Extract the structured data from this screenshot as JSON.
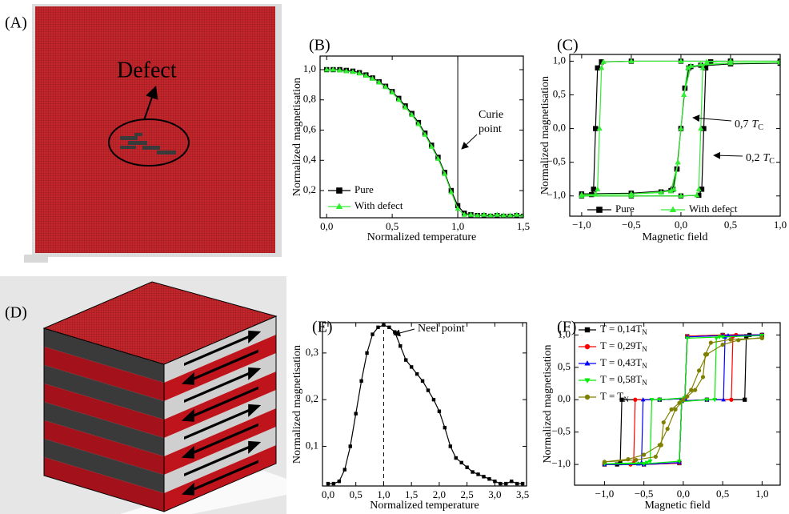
{
  "panels": [
    "(A)",
    "(B)",
    "(C)",
    "(D)",
    "(E)",
    "(F)"
  ],
  "defect_label": "Defect",
  "chart_data": [
    {
      "type": "line",
      "xlabel": "Normalized temperature",
      "ylabel": "Normalized magnetisation",
      "xlim": [
        -0.05,
        1.5
      ],
      "ylim": [
        0.02,
        1.09
      ],
      "xticks": [
        {
          "value": 0,
          "label": "0,0"
        },
        {
          "value": 0.5,
          "label": "0,5"
        },
        {
          "value": 1.0,
          "label": "1,0"
        },
        {
          "value": 1.5,
          "label": "1,5"
        }
      ],
      "yticks": [
        {
          "value": 0.2,
          "label": "0,2"
        },
        {
          "value": 0.4,
          "label": "0,4"
        },
        {
          "value": 0.6,
          "label": "0,6"
        },
        {
          "value": 0.8,
          "label": "0,8"
        },
        {
          "value": 1.0,
          "label": "1,0"
        }
      ],
      "grid": false,
      "legend": "lower left",
      "reference_line": {
        "x": 1.0,
        "dashed": false
      },
      "annotations": [
        {
          "lines": [
            "Curie",
            "point"
          ]
        }
      ],
      "x": [
        0,
        0.05,
        0.1,
        0.15,
        0.2,
        0.25,
        0.3,
        0.35,
        0.4,
        0.45,
        0.5,
        0.55,
        0.6,
        0.65,
        0.7,
        0.75,
        0.8,
        0.85,
        0.9,
        0.95,
        1.0,
        1.05,
        1.1,
        1.15,
        1.2,
        1.25,
        1.3,
        1.35,
        1.4,
        1.45,
        1.5
      ],
      "series": [
        {
          "name": "Pure",
          "color": "#000000",
          "marker": "square",
          "values": [
            1.0,
            1.0,
            1.0,
            0.995,
            0.99,
            0.98,
            0.965,
            0.945,
            0.92,
            0.89,
            0.855,
            0.81,
            0.76,
            0.71,
            0.65,
            0.58,
            0.5,
            0.42,
            0.32,
            0.2,
            0.1,
            0.05,
            0.04,
            0.035,
            0.035,
            0.03,
            0.035,
            0.03,
            0.03,
            0.035,
            0.03
          ]
        },
        {
          "name": "With defect",
          "color": "#33ee33",
          "marker": "triangle",
          "values": [
            1.0,
            1.0,
            0.995,
            0.99,
            0.985,
            0.975,
            0.96,
            0.94,
            0.915,
            0.885,
            0.85,
            0.8,
            0.75,
            0.7,
            0.64,
            0.57,
            0.49,
            0.41,
            0.31,
            0.19,
            0.08,
            0.04,
            0.04,
            0.035,
            0.04,
            0.035,
            0.04,
            0.035,
            0.035,
            0.04,
            0.035
          ]
        }
      ]
    },
    {
      "type": "line",
      "xlabel": "Magnetic field",
      "ylabel": "Normalized magnetisation",
      "xlim": [
        -1.12,
        1.0
      ],
      "ylim": [
        -1.3,
        1.1
      ],
      "xticks": [
        {
          "value": -1.0,
          "label": "−1,0"
        },
        {
          "value": -0.5,
          "label": "−0,5"
        },
        {
          "value": 0,
          "label": "0,0"
        },
        {
          "value": 0.5,
          "label": "0,5"
        },
        {
          "value": 1.0,
          "label": "1,0"
        }
      ],
      "yticks": [
        {
          "value": -1.0,
          "label": "−1,0"
        },
        {
          "value": -0.5,
          "label": "−0,5"
        },
        {
          "value": 0,
          "label": "0,0"
        },
        {
          "value": 0.5,
          "label": "0,5"
        },
        {
          "value": 1.0,
          "label": "1,0"
        }
      ],
      "grid": false,
      "legend": "lower center",
      "annotations": [
        {
          "text": "0,7",
          "symbol": "T",
          "subscript": "C"
        },
        {
          "text": "0,2",
          "symbol": "T",
          "subscript": "C"
        }
      ],
      "series": [
        {
          "name": "Pure",
          "color": "#000000",
          "marker": "square",
          "x": [
            1.0,
            0.5,
            0.0,
            -0.5,
            -0.8,
            -0.84,
            -0.86,
            -0.88,
            -0.9,
            -1.0,
            -0.5,
            0.0,
            0.18,
            0.21,
            0.23,
            0.25,
            0.3,
            0.5,
            1.0,
            null,
            1.0,
            0.5,
            0.1,
            0.04,
            0.0,
            -0.04,
            -0.08,
            -0.2,
            -0.5,
            -1.0,
            -0.5,
            -0.1,
            -0.04,
            0.0,
            0.04,
            0.08,
            0.2,
            0.5,
            1.0
          ],
          "values": [
            1.0,
            1.0,
            1.0,
            1.0,
            0.99,
            0.9,
            0.0,
            -0.9,
            -0.98,
            -1.0,
            -1.0,
            -1.0,
            -0.99,
            -0.9,
            0.0,
            0.9,
            0.99,
            1.0,
            1.0,
            null,
            0.97,
            0.96,
            0.92,
            0.6,
            0.0,
            -0.6,
            -0.9,
            -0.94,
            -0.96,
            -0.97,
            -0.96,
            -0.92,
            -0.6,
            0.0,
            0.6,
            0.9,
            0.94,
            0.96,
            0.97
          ]
        },
        {
          "name": "With defect",
          "color": "#33ee33",
          "marker": "triangle",
          "x": [
            1.0,
            0.5,
            0.0,
            -0.5,
            -0.78,
            -0.8,
            -0.82,
            -0.84,
            -0.86,
            -1.0,
            -0.5,
            0.0,
            0.16,
            0.18,
            0.2,
            0.22,
            0.26,
            0.5,
            1.0,
            null,
            1.0,
            0.5,
            0.1,
            0.03,
            0.0,
            -0.03,
            -0.07,
            -0.2,
            -0.5,
            -1.0,
            -0.5,
            -0.1,
            -0.03,
            0.0,
            0.03,
            0.07,
            0.2,
            0.5,
            1.0
          ],
          "values": [
            1.0,
            1.0,
            1.0,
            1.0,
            0.99,
            0.9,
            0.0,
            -0.9,
            -0.98,
            -1.0,
            -1.0,
            -1.0,
            -0.99,
            -0.9,
            0.0,
            0.9,
            0.99,
            1.0,
            1.0,
            null,
            0.98,
            0.97,
            0.93,
            0.5,
            0.0,
            -0.5,
            -0.9,
            -0.95,
            -0.97,
            -0.98,
            -0.97,
            -0.93,
            -0.5,
            0.0,
            0.5,
            0.9,
            0.95,
            0.97,
            0.98
          ]
        }
      ]
    },
    {
      "type": "line",
      "xlabel": "Normalized temperature",
      "ylabel": "Normalized magnetisation",
      "xlim": [
        -0.1,
        3.57
      ],
      "ylim": [
        0.015,
        0.365
      ],
      "xticks": [
        {
          "value": 0,
          "label": "0,0"
        },
        {
          "value": 0.5,
          "label": "0,5"
        },
        {
          "value": 1.0,
          "label": "1,0"
        },
        {
          "value": 1.5,
          "label": "1,5"
        },
        {
          "value": 2.0,
          "label": "2,0"
        },
        {
          "value": 2.5,
          "label": "2,5"
        },
        {
          "value": 3.0,
          "label": "3,0"
        },
        {
          "value": 3.5,
          "label": "3,5"
        }
      ],
      "yticks": [
        {
          "value": 0.1,
          "label": "0,1"
        },
        {
          "value": 0.2,
          "label": "0,2"
        },
        {
          "value": 0.3,
          "label": "0,3"
        }
      ],
      "grid": false,
      "reference_line": {
        "x": 1.0,
        "dashed": true
      },
      "annotations": [
        {
          "text": "Neel point"
        }
      ],
      "x": [
        0,
        0.1,
        0.2,
        0.3,
        0.4,
        0.5,
        0.6,
        0.7,
        0.8,
        0.9,
        1.0,
        1.1,
        1.2,
        1.3,
        1.4,
        1.5,
        1.6,
        1.7,
        1.8,
        1.9,
        2.0,
        2.1,
        2.2,
        2.3,
        2.4,
        2.5,
        2.6,
        2.7,
        2.8,
        2.9,
        3.0,
        3.1,
        3.2,
        3.3,
        3.4,
        3.5
      ],
      "series": [
        {
          "color": "#000000",
          "marker": "square",
          "values": [
            0.02,
            0.02,
            0.025,
            0.05,
            0.1,
            0.17,
            0.24,
            0.3,
            0.34,
            0.355,
            0.36,
            0.355,
            0.345,
            0.315,
            0.285,
            0.27,
            0.255,
            0.24,
            0.22,
            0.2,
            0.175,
            0.14,
            0.1,
            0.075,
            0.065,
            0.055,
            0.045,
            0.04,
            0.035,
            0.03,
            0.025,
            0.02,
            0.02,
            0.025,
            0.02,
            0.02
          ]
        }
      ]
    },
    {
      "type": "line",
      "xlabel": "Magnetic field",
      "ylabel": "Normalized magnetisation",
      "xlim": [
        -1.38,
        1.23
      ],
      "ylim": [
        -1.32,
        1.19
      ],
      "xticks": [
        {
          "value": -1.0,
          "label": "−1,0"
        },
        {
          "value": -0.5,
          "label": "−0,5"
        },
        {
          "value": 0,
          "label": "0,0"
        },
        {
          "value": 0.5,
          "label": "0,5"
        },
        {
          "value": 1.0,
          "label": "1,0"
        }
      ],
      "yticks": [
        {
          "value": -1.0,
          "label": "−1,0"
        },
        {
          "value": -0.5,
          "label": "−0,5"
        },
        {
          "value": 0,
          "label": "0,0"
        },
        {
          "value": 0.5,
          "label": "0,5"
        },
        {
          "value": 1.0,
          "label": "1,0"
        }
      ],
      "grid": false,
      "legend": "upper left",
      "series": [
        {
          "name": "T = 0,14T",
          "name_subscript": "N",
          "color": "#000000",
          "marker": "square",
          "x": [
            1.0,
            0.5,
            0.05,
            0.02,
            -0.3,
            -0.78,
            -0.8,
            -0.84,
            -1.0,
            -0.5,
            -0.05,
            -0.02,
            0.3,
            0.78,
            0.8,
            0.84,
            1.0
          ],
          "values": [
            1.0,
            1.0,
            0.98,
            0.02,
            0.0,
            0.0,
            -0.98,
            -1.0,
            -1.0,
            -1.0,
            -0.98,
            -0.02,
            0.0,
            0.0,
            0.98,
            1.0,
            1.0
          ]
        },
        {
          "name": "T = 0,29T",
          "name_subscript": "N",
          "color": "#ff0000",
          "marker": "circle",
          "x": [
            1.0,
            0.5,
            0.05,
            0.02,
            -0.3,
            -0.61,
            -0.63,
            -0.67,
            -1.0,
            -0.5,
            -0.05,
            -0.02,
            0.3,
            0.61,
            0.63,
            0.67,
            1.0
          ],
          "values": [
            1.0,
            1.0,
            0.98,
            0.02,
            0.0,
            0.0,
            -0.98,
            -1.0,
            -1.0,
            -1.0,
            -0.98,
            -0.02,
            0.0,
            0.0,
            0.98,
            1.0,
            1.0
          ]
        },
        {
          "name": "T = 0,43T",
          "name_subscript": "N",
          "color": "#0000ff",
          "marker": "triangle",
          "x": [
            1.0,
            0.5,
            0.05,
            0.02,
            -0.3,
            -0.51,
            -0.53,
            -0.57,
            -1.0,
            -0.5,
            -0.05,
            -0.02,
            0.3,
            0.51,
            0.53,
            0.57,
            1.0
          ],
          "values": [
            1.0,
            0.99,
            0.97,
            0.02,
            0.0,
            0.0,
            -0.97,
            -0.99,
            -1.0,
            -1.0,
            -0.97,
            -0.02,
            0.0,
            0.0,
            0.97,
            0.99,
            1.0
          ]
        },
        {
          "name": "T = 0,58T",
          "name_subscript": "N",
          "color": "#00ee00",
          "marker": "triangle-down",
          "x": [
            1.0,
            0.5,
            0.05,
            0.02,
            -0.3,
            -0.4,
            -0.42,
            -0.46,
            -1.0,
            -0.5,
            -0.05,
            -0.02,
            0.3,
            0.4,
            0.42,
            0.46,
            1.0
          ],
          "values": [
            0.99,
            0.97,
            0.95,
            0.03,
            0.0,
            0.0,
            -0.95,
            -0.97,
            -0.99,
            -0.99,
            -0.95,
            -0.03,
            0.0,
            0.0,
            0.95,
            0.97,
            0.99
          ]
        },
        {
          "name": "T = T",
          "name_subscript": "N",
          "color": "#808000",
          "marker": "circle",
          "x": [
            1.0,
            0.6,
            0.35,
            0.28,
            0.25,
            0.15,
            0.05,
            0.0,
            -0.1,
            -0.2,
            -0.3,
            -0.5,
            -0.7,
            -1.0,
            -0.6,
            -0.35,
            -0.28,
            -0.25,
            -0.15,
            -0.05,
            0.0,
            0.1,
            0.2,
            0.3,
            0.5,
            0.7,
            1.0
          ],
          "values": [
            0.95,
            0.93,
            0.88,
            0.7,
            0.35,
            0.15,
            0.05,
            0.0,
            -0.15,
            -0.45,
            -0.7,
            -0.85,
            -0.92,
            -0.96,
            -0.93,
            -0.88,
            -0.7,
            -0.35,
            -0.15,
            -0.05,
            0.0,
            0.15,
            0.45,
            0.7,
            0.85,
            0.92,
            0.96
          ]
        }
      ]
    }
  ]
}
